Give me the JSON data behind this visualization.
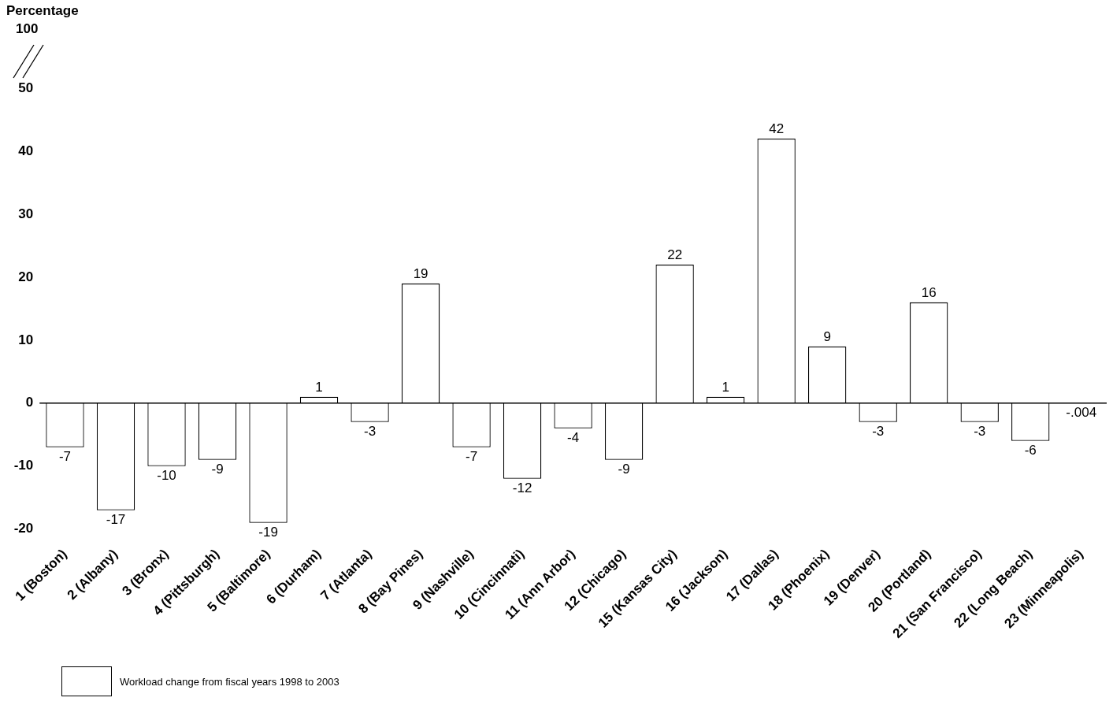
{
  "chart_data": {
    "type": "bar",
    "ylabel": "Percentage",
    "categories": [
      "1 (Boston)",
      "2 (Albany)",
      "3 (Bronx)",
      "4 (Pittsburgh)",
      "5 (Baltimore)",
      "6 (Durham)",
      "7 (Atlanta)",
      "8 (Bay Pines)",
      "9 (Nashville)",
      "10 (Cincinnati)",
      "11 (Ann Arbor)",
      "12 (Chicago)",
      "15 (Kansas City)",
      "16 (Jackson)",
      "17 (Dallas)",
      "18 (Phoenix)",
      "19 (Denver)",
      "20 (Portland)",
      "21 (San Francisco)",
      "22 (Long Beach)",
      "23 (Minneapolis)"
    ],
    "series": [
      {
        "name": "Workload change from fiscal years 1998 to 2003",
        "color": "#ffffff",
        "values": [
          -7,
          -17,
          -10,
          -9,
          -19,
          1,
          -3,
          19,
          -7,
          -12,
          -4,
          -9,
          22,
          1,
          42,
          9,
          -3,
          16,
          -3,
          -6,
          -0.004
        ],
        "value_labels": [
          "-7",
          "-17",
          "-10",
          "-9",
          "-19",
          "1",
          "-3",
          "19",
          "-7",
          "-12",
          "-4",
          "-9",
          "22",
          "1",
          "42",
          "9",
          "-3",
          "16",
          "-3",
          "-6",
          "-.004"
        ]
      }
    ],
    "ylim": [
      -20,
      50
    ],
    "yticks": [
      -20,
      -10,
      0,
      10,
      20,
      30,
      40,
      50
    ],
    "annotations": [
      "100"
    ],
    "ref_lines": [
      {
        "axis": "y",
        "value": 0,
        "color": "#000000"
      }
    ],
    "legend": "bottom",
    "grid": false
  }
}
